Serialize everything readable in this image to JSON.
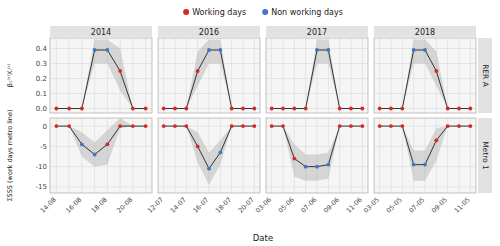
{
  "chart_data": [
    {
      "type": "line",
      "title": "2014",
      "ylabel": "β₁⁽ˢ⁾Xᵢ⁽ˢ⁾",
      "legend": "top",
      "grid": true,
      "tick_labels": "y",
      "categories": [
        "14-08",
        null,
        "16-08",
        null,
        "18-08",
        null,
        "20-08",
        null
      ],
      "ylim": [
        -0.03,
        0.47
      ],
      "yticks": [
        {
          "value": 0.0,
          "label": "0.0"
        },
        0.1,
        0.2,
        0.3,
        0.4
      ],
      "series": [
        {
          "name": "Working days",
          "type": "scatter",
          "color": "#d62728",
          "values": [
            0.0,
            0.0,
            0.0,
            null,
            null,
            0.25,
            0.0,
            0.0
          ]
        },
        {
          "name": "Non working days",
          "type": "scatter",
          "color": "#4472c4",
          "values": [
            null,
            null,
            null,
            0.39,
            0.39,
            null,
            null,
            null
          ]
        },
        {
          "type": "band",
          "color": "#b0b0b0",
          "lower": [
            0.0,
            0.0,
            0.0,
            0.3,
            0.3,
            0.12,
            0.0,
            0.0
          ],
          "upper": [
            0.0,
            0.0,
            0.0,
            0.46,
            0.46,
            0.4,
            0.0,
            0.0
          ]
        },
        {
          "type": "line",
          "color": "#333333",
          "values": [
            0.0,
            0.0,
            0.0,
            0.39,
            0.39,
            0.25,
            0.0,
            0.0
          ]
        }
      ]
    },
    {
      "type": "line",
      "title": "2016",
      "grid": true,
      "tick_labels": false,
      "categories": [
        "12-07",
        null,
        "14-07",
        null,
        "16-07",
        null,
        "18-07",
        null,
        "20-07"
      ],
      "ylim": [
        -0.03,
        0.47
      ],
      "yticks": [
        {
          "value": 0.0,
          "label": "0.0"
        },
        0.1,
        0.2,
        0.3,
        0.4
      ],
      "series": [
        {
          "type": "scatter",
          "color": "#d62728",
          "values": [
            0.0,
            0.0,
            0.0,
            0.25,
            null,
            null,
            0.0,
            0.0,
            0.0
          ]
        },
        {
          "type": "scatter",
          "color": "#4472c4",
          "values": [
            null,
            null,
            null,
            null,
            0.39,
            0.39,
            null,
            null,
            null
          ]
        },
        {
          "type": "band",
          "color": "#b0b0b0",
          "lower": [
            0.0,
            0.0,
            0.0,
            0.15,
            0.3,
            0.3,
            0.0,
            0.0,
            0.0
          ],
          "upper": [
            0.0,
            0.0,
            0.0,
            0.38,
            0.46,
            0.46,
            0.0,
            0.0,
            0.0
          ]
        },
        {
          "type": "line",
          "color": "#333333",
          "values": [
            0.0,
            0.0,
            0.0,
            0.25,
            0.39,
            0.39,
            0.0,
            0.0,
            0.0
          ]
        }
      ]
    },
    {
      "type": "line",
      "title": "2017",
      "grid": true,
      "tick_labels": false,
      "categories": [
        "03-06",
        null,
        "05-06",
        null,
        "07-06",
        null,
        "09-06",
        null,
        "11-06"
      ],
      "ylim": [
        -0.03,
        0.47
      ],
      "yticks": [
        {
          "value": 0.0,
          "label": "0.0"
        },
        0.1,
        0.2,
        0.3,
        0.4
      ],
      "series": [
        {
          "type": "scatter",
          "color": "#d62728",
          "values": [
            0.0,
            0.0,
            0.0,
            0.0,
            null,
            null,
            0.0,
            0.0,
            0.0
          ]
        },
        {
          "type": "scatter",
          "color": "#4472c4",
          "values": [
            null,
            null,
            null,
            null,
            0.39,
            0.39,
            null,
            null,
            null
          ]
        },
        {
          "type": "band",
          "color": "#b0b0b0",
          "lower": [
            0.0,
            0.0,
            0.0,
            0.0,
            0.3,
            0.3,
            0.0,
            0.0,
            0.0
          ],
          "upper": [
            0.0,
            0.0,
            0.0,
            0.0,
            0.46,
            0.46,
            0.0,
            0.0,
            0.0
          ]
        },
        {
          "type": "line",
          "color": "#333333",
          "values": [
            0.0,
            0.0,
            0.0,
            0.0,
            0.39,
            0.39,
            0.0,
            0.0,
            0.0
          ]
        }
      ]
    },
    {
      "type": "line",
      "title": "2018",
      "annotations": [
        "RER A"
      ],
      "grid": true,
      "tick_labels": false,
      "categories": [
        "03-05",
        null,
        "05-05",
        null,
        "07-05",
        null,
        "09-05",
        null,
        "11-05"
      ],
      "ylim": [
        -0.03,
        0.47
      ],
      "yticks": [
        {
          "value": 0.0,
          "label": "0.0"
        },
        0.1,
        0.2,
        0.3,
        0.4
      ],
      "series": [
        {
          "type": "scatter",
          "color": "#d62728",
          "values": [
            0.0,
            0.0,
            0.0,
            null,
            null,
            0.25,
            0.0,
            0.0,
            0.0
          ]
        },
        {
          "type": "scatter",
          "color": "#4472c4",
          "values": [
            null,
            null,
            null,
            0.39,
            0.39,
            null,
            null,
            null,
            null
          ]
        },
        {
          "type": "band",
          "color": "#b0b0b0",
          "lower": [
            0.0,
            0.0,
            0.0,
            0.3,
            0.3,
            0.15,
            0.0,
            0.0,
            0.0
          ],
          "upper": [
            0.0,
            0.0,
            0.0,
            0.46,
            0.46,
            0.38,
            0.0,
            0.0,
            0.0
          ]
        },
        {
          "type": "line",
          "color": "#333333",
          "values": [
            0.0,
            0.0,
            0.0,
            0.39,
            0.39,
            0.25,
            0.0,
            0.0,
            0.0
          ]
        }
      ]
    },
    {
      "type": "line",
      "ylabel": "ΣSSS (work days metro line)",
      "xlabel": "Date",
      "grid": true,
      "categories": [
        "14-08",
        null,
        "16-08",
        null,
        "18-08",
        null,
        "20-08",
        null
      ],
      "ylim": [
        -16.5,
        2.0
      ],
      "yticks": [
        -15,
        -10,
        -5,
        0
      ],
      "series": [
        {
          "type": "scatter",
          "color": "#d62728",
          "values": [
            0.0,
            0.0,
            null,
            null,
            -4.5,
            0.0,
            0.0,
            0.0
          ]
        },
        {
          "type": "scatter",
          "color": "#4472c4",
          "values": [
            null,
            null,
            -4.5,
            -7.0,
            null,
            null,
            null,
            null
          ]
        },
        {
          "type": "band",
          "color": "#b0b0b0",
          "lower": [
            0.0,
            0.0,
            -7.5,
            -10.0,
            -9.5,
            -0.5,
            0.0,
            0.0
          ],
          "upper": [
            0.0,
            0.0,
            -1.5,
            -4.0,
            -1.0,
            2.0,
            0.0,
            0.0
          ]
        },
        {
          "type": "line",
          "color": "#333333",
          "values": [
            0.0,
            0.0,
            -4.5,
            -7.0,
            -4.5,
            0.0,
            0.0,
            0.0
          ]
        }
      ]
    },
    {
      "type": "line",
      "grid": true,
      "tick_labels": "x",
      "categories": [
        "12-07",
        null,
        "14-07",
        null,
        "16-07",
        null,
        "18-07",
        null,
        "20-07"
      ],
      "ylim": [
        -16.5,
        2.0
      ],
      "yticks": [
        -15,
        -10,
        -5,
        0
      ],
      "series": [
        {
          "type": "scatter",
          "color": "#d62728",
          "values": [
            0.0,
            0.0,
            0.0,
            -5.0,
            null,
            null,
            0.0,
            0.0,
            0.0
          ]
        },
        {
          "type": "scatter",
          "color": "#4472c4",
          "values": [
            null,
            null,
            null,
            null,
            -10.5,
            -6.5,
            null,
            null,
            null
          ]
        },
        {
          "type": "band",
          "color": "#b0b0b0",
          "lower": [
            0.0,
            0.0,
            0.0,
            -9.0,
            -14.5,
            -9.5,
            0.0,
            0.0,
            0.0
          ],
          "upper": [
            0.0,
            0.0,
            0.0,
            -1.5,
            -6.5,
            -3.5,
            0.0,
            0.0,
            0.0
          ]
        },
        {
          "type": "line",
          "color": "#333333",
          "values": [
            0.0,
            0.0,
            0.0,
            -5.0,
            -10.5,
            -6.5,
            0.0,
            0.0,
            0.0
          ]
        }
      ]
    },
    {
      "type": "line",
      "grid": true,
      "tick_labels": "x",
      "categories": [
        "03-06",
        null,
        "05-06",
        null,
        "07-06",
        null,
        "09-06",
        null,
        "11-06"
      ],
      "ylim": [
        -16.5,
        2.0
      ],
      "yticks": [
        -15,
        -10,
        -5,
        0
      ],
      "series": [
        {
          "type": "scatter",
          "color": "#d62728",
          "values": [
            0.0,
            0.0,
            -8.0,
            null,
            null,
            null,
            0.0,
            0.0,
            0.0
          ]
        },
        {
          "type": "scatter",
          "color": "#4472c4",
          "values": [
            null,
            null,
            null,
            -10.0,
            -10.0,
            -9.5,
            null,
            null,
            null
          ]
        },
        {
          "type": "band",
          "color": "#b0b0b0",
          "lower": [
            0.0,
            0.0,
            -12.5,
            -13.5,
            -13.5,
            -13.0,
            0.0,
            0.0,
            0.0
          ],
          "upper": [
            0.0,
            0.0,
            -4.5,
            -7.0,
            -7.0,
            -6.5,
            0.0,
            0.0,
            0.0
          ]
        },
        {
          "type": "line",
          "color": "#333333",
          "values": [
            0.0,
            0.0,
            -8.0,
            -10.0,
            -10.0,
            -9.5,
            0.0,
            0.0,
            0.0
          ]
        }
      ]
    },
    {
      "type": "line",
      "annotations": [
        "Metro 1"
      ],
      "grid": true,
      "tick_labels": "x",
      "categories": [
        "03-05",
        null,
        "05-05",
        null,
        "07-05",
        null,
        "09-05",
        null,
        "11-05"
      ],
      "ylim": [
        -16.5,
        2.0
      ],
      "yticks": [
        -15,
        -10,
        -5,
        0
      ],
      "series": [
        {
          "type": "scatter",
          "color": "#d62728",
          "values": [
            0.0,
            0.0,
            0.0,
            null,
            null,
            -3.5,
            0.0,
            0.0,
            0.0
          ]
        },
        {
          "type": "scatter",
          "color": "#4472c4",
          "values": [
            null,
            null,
            null,
            -9.5,
            -9.5,
            null,
            null,
            null,
            null
          ]
        },
        {
          "type": "band",
          "color": "#b0b0b0",
          "lower": [
            0.0,
            0.0,
            0.0,
            -13.5,
            -13.5,
            -8.5,
            0.0,
            0.0,
            0.0
          ],
          "upper": [
            0.0,
            0.0,
            0.0,
            -6.0,
            -6.0,
            -0.5,
            0.0,
            0.0,
            0.0
          ]
        },
        {
          "type": "line",
          "color": "#333333",
          "values": [
            0.0,
            0.0,
            0.0,
            -9.5,
            -9.5,
            -3.5,
            0.0,
            0.0,
            0.0
          ]
        }
      ]
    }
  ]
}
